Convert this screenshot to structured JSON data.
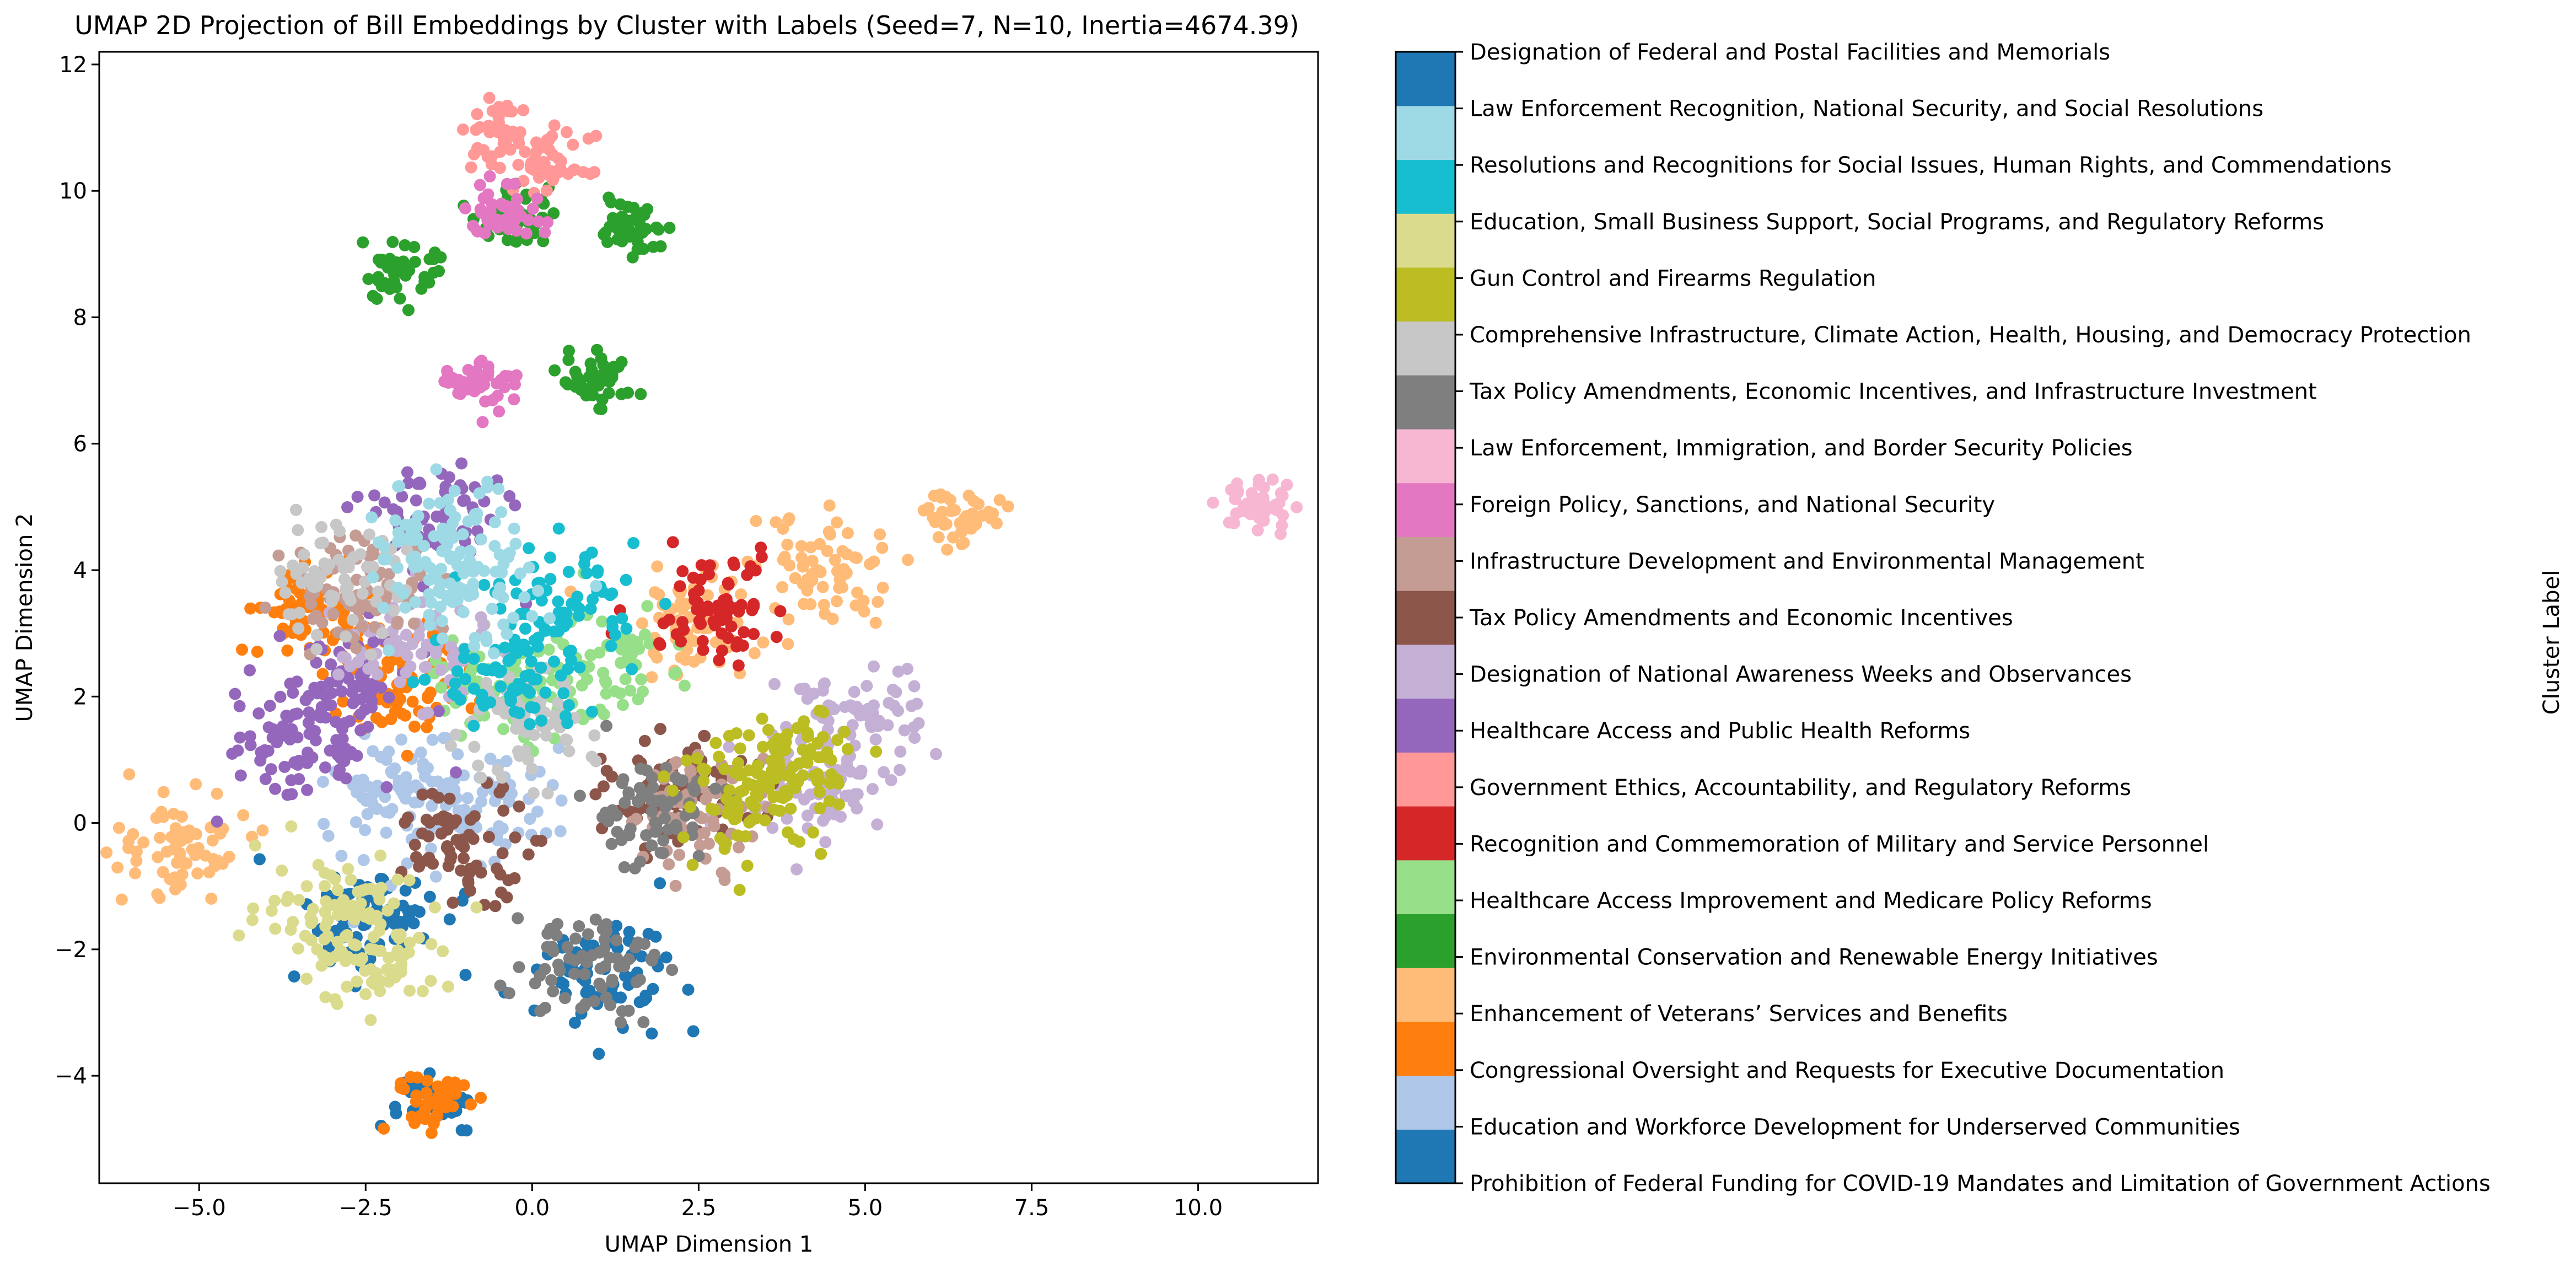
{
  "chart_data": {
    "type": "scatter",
    "title": "UMAP 2D Projection of Bill Embeddings by Cluster with Labels (Seed=7, N=10, Inertia=4674.39)",
    "xlabel": "UMAP Dimension 1",
    "ylabel": "UMAP Dimension 2",
    "xlim": [
      -6.5,
      11.8
    ],
    "ylim": [
      -5.7,
      12.2
    ],
    "xticks": [
      -5.0,
      -2.5,
      0.0,
      2.5,
      5.0,
      7.5,
      10.0
    ],
    "xtick_labels": [
      "−5.0",
      "−2.5",
      "0.0",
      "2.5",
      "5.0",
      "7.5",
      "10.0"
    ],
    "yticks": [
      -4,
      -2,
      0,
      2,
      4,
      6,
      8,
      10,
      12
    ],
    "ytick_labels": [
      "−4",
      "−2",
      "0",
      "2",
      "4",
      "6",
      "8",
      "10",
      "12"
    ],
    "grid": false,
    "colorbar": {
      "label": "Cluster Label",
      "colors": [
        "#1f77b4",
        "#aec7e8",
        "#ff7f0e",
        "#ffbb78",
        "#2ca02c",
        "#98df8a",
        "#d62728",
        "#ff9896",
        "#9467bd",
        "#c5b0d5",
        "#8c564b",
        "#c49c94",
        "#e377c2",
        "#f7b6d2",
        "#7f7f7f",
        "#c7c7c7",
        "#bcbd22",
        "#dbdb8d",
        "#17becf",
        "#9edae5",
        "#1f77b4"
      ],
      "labels": [
        "Prohibition of Federal Funding for COVID-19 Mandates and Limitation of Government Actions",
        "Education and Workforce Development for Underserved Communities",
        "Congressional Oversight and Requests for Executive Documentation",
        "Enhancement of Veterans’ Services and Benefits",
        "Environmental Conservation and Renewable Energy Initiatives",
        "Healthcare Access Improvement and Medicare Policy Reforms",
        "Recognition and Commemoration of Military and Service Personnel",
        "Government Ethics, Accountability, and Regulatory Reforms",
        "Healthcare Access and Public Health Reforms",
        "Designation of National Awareness Weeks and Observances",
        "Tax Policy Amendments and Economic Incentives",
        "Infrastructure Development and Environmental Management",
        "Foreign Policy, Sanctions, and National Security",
        "Law Enforcement, Immigration, and Border Security Policies",
        "Tax Policy Amendments, Economic Incentives, and Infrastructure Investment",
        "Comprehensive Infrastructure, Climate Action, Health, Housing, and Democracy Protection",
        "Gun Control and Firearms Regulation",
        "Education, Small Business Support, Social Programs, and Regulatory Reforms",
        "Resolutions and Recognitions for Social Issues, Human Rights, and Commendations",
        "Law Enforcement Recognition, National Security, and Social Resolutions",
        "Designation of Federal and Postal Facilities and Memorials"
      ]
    },
    "clusters": [
      {
        "label": 0,
        "centers": [
          [
            -2.3,
            -1.5
          ],
          [
            1.0,
            -2.4
          ],
          [
            -1.45,
            -4.4
          ]
        ]
      },
      {
        "label": 1,
        "centers": [
          [
            -0.8,
            0.3
          ],
          [
            -2.0,
            0.5
          ]
        ]
      },
      {
        "label": 2,
        "centers": [
          [
            -2.0,
            2.1
          ],
          [
            -1.5,
            -4.4
          ],
          [
            -3.2,
            3.3
          ]
        ]
      },
      {
        "label": 3,
        "centers": [
          [
            2.5,
            3.2
          ],
          [
            4.4,
            4.0
          ],
          [
            6.5,
            4.85
          ],
          [
            -5.3,
            -0.4
          ]
        ]
      },
      {
        "label": 4,
        "centers": [
          [
            -0.3,
            9.6
          ],
          [
            0.9,
            7.0
          ],
          [
            -2.0,
            8.7
          ],
          [
            1.5,
            9.4
          ]
        ]
      },
      {
        "label": 5,
        "centers": [
          [
            1.0,
            2.5
          ],
          [
            -0.5,
            2.0
          ]
        ]
      },
      {
        "label": 6,
        "centers": [
          [
            2.7,
            3.5
          ]
        ]
      },
      {
        "label": 7,
        "centers": [
          [
            -0.5,
            10.9
          ],
          [
            0.3,
            10.4
          ]
        ]
      },
      {
        "label": 8,
        "centers": [
          [
            -2.9,
            2.1
          ],
          [
            -1.5,
            4.8
          ],
          [
            -3.5,
            1.2
          ]
        ]
      },
      {
        "label": 9,
        "centers": [
          [
            4.2,
            0.5
          ],
          [
            -1.8,
            2.8
          ],
          [
            4.8,
            1.6
          ]
        ]
      },
      {
        "label": 10,
        "centers": [
          [
            2.2,
            0.4
          ],
          [
            -1.0,
            -0.3
          ]
        ]
      },
      {
        "label": 11,
        "centers": [
          [
            -2.6,
            3.7
          ],
          [
            2.5,
            0.2
          ]
        ]
      },
      {
        "label": 12,
        "centers": [
          [
            -0.4,
            9.7
          ],
          [
            -0.8,
            7.0
          ]
        ]
      },
      {
        "label": 13,
        "centers": [
          [
            10.9,
            5.0
          ]
        ]
      },
      {
        "label": 14,
        "centers": [
          [
            0.8,
            -2.2
          ],
          [
            1.8,
            0.2
          ]
        ]
      },
      {
        "label": 15,
        "centers": [
          [
            -0.2,
            1.5
          ],
          [
            -3.0,
            3.8
          ]
        ]
      },
      {
        "label": 16,
        "centers": [
          [
            3.3,
            0.4
          ],
          [
            4.0,
            1.0
          ]
        ]
      },
      {
        "label": 17,
        "centers": [
          [
            -3.0,
            -1.3
          ],
          [
            -2.2,
            -2.1
          ]
        ]
      },
      {
        "label": 18,
        "centers": [
          [
            -0.3,
            2.2
          ],
          [
            0.5,
            3.5
          ]
        ]
      },
      {
        "label": 19,
        "centers": [
          [
            -1.4,
            4.5
          ],
          [
            -1.0,
            3.6
          ]
        ]
      }
    ]
  }
}
